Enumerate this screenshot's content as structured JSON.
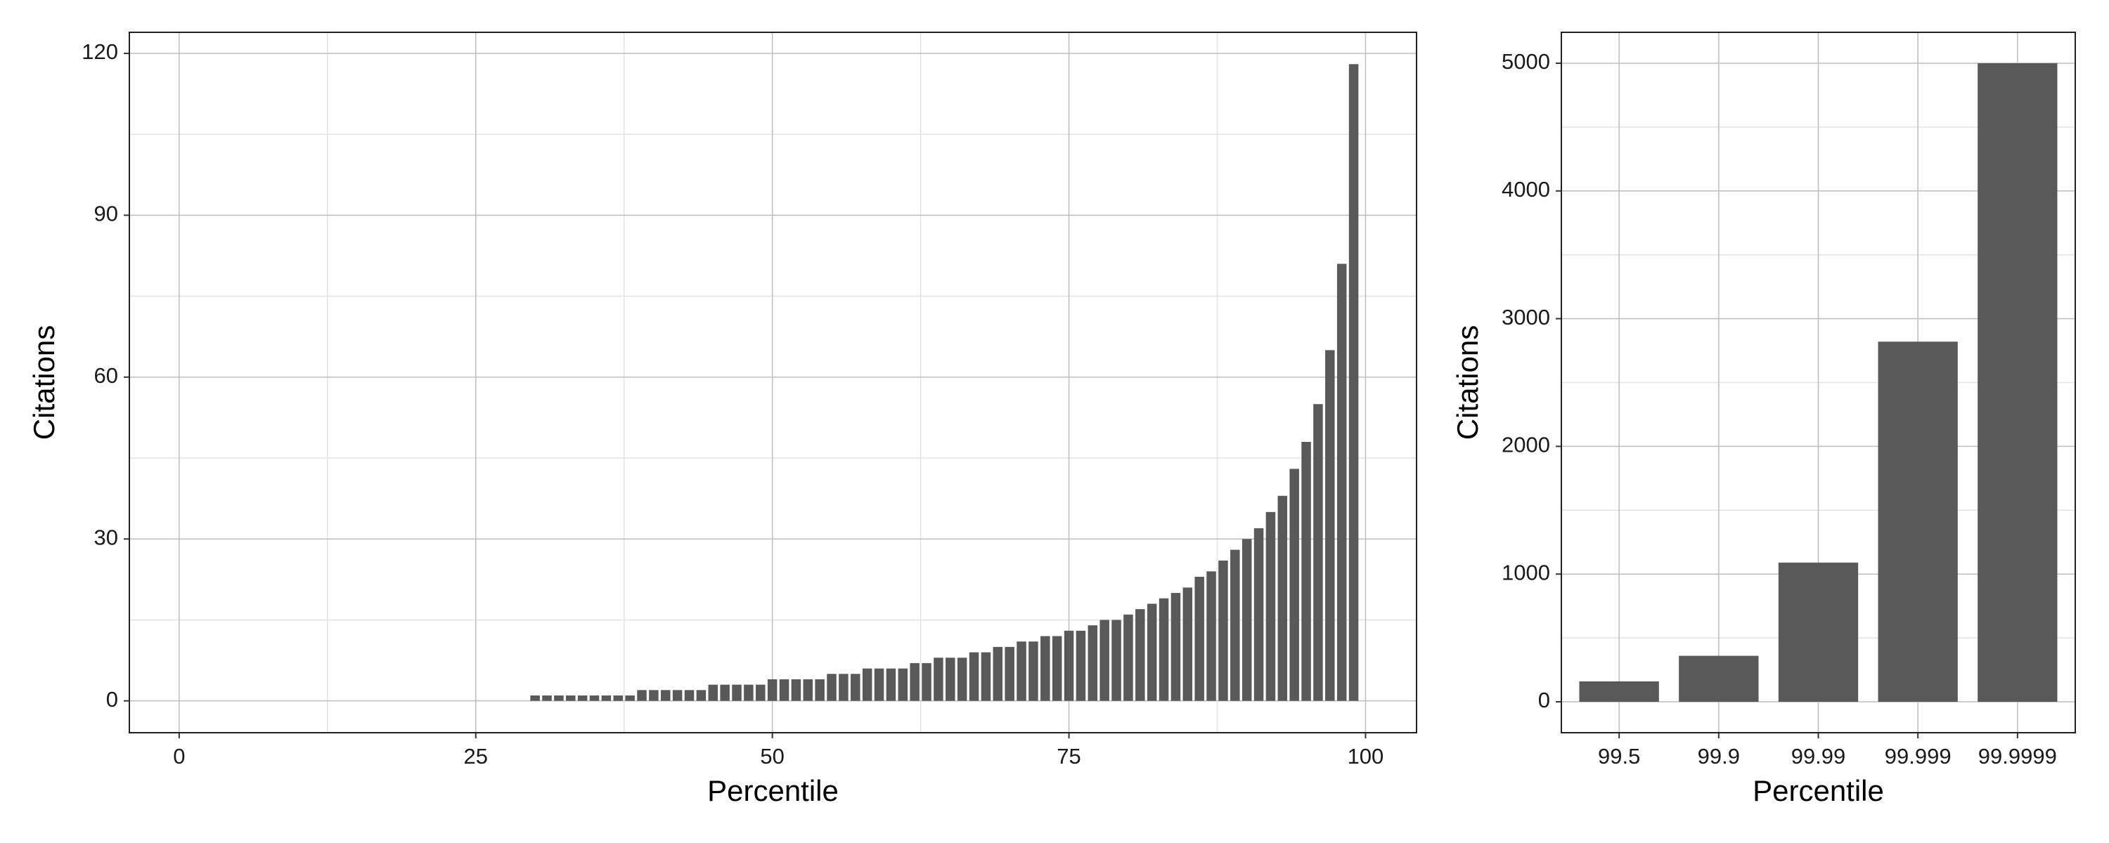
{
  "chart_data": [
    {
      "type": "bar",
      "x_label": "Percentile",
      "y_label": "Citations",
      "color": "#595959",
      "grid": true,
      "x": [
        0,
        1,
        2,
        3,
        4,
        5,
        6,
        7,
        8,
        9,
        10,
        11,
        12,
        13,
        14,
        15,
        16,
        17,
        18,
        19,
        20,
        21,
        22,
        23,
        24,
        25,
        26,
        27,
        28,
        29,
        30,
        31,
        32,
        33,
        34,
        35,
        36,
        37,
        38,
        39,
        40,
        41,
        42,
        43,
        44,
        45,
        46,
        47,
        48,
        49,
        50,
        51,
        52,
        53,
        54,
        55,
        56,
        57,
        58,
        59,
        60,
        61,
        62,
        63,
        64,
        65,
        66,
        67,
        68,
        69,
        70,
        71,
        72,
        73,
        74,
        75,
        76,
        77,
        78,
        79,
        80,
        81,
        82,
        83,
        84,
        85,
        86,
        87,
        88,
        89,
        90,
        91,
        92,
        93,
        94,
        95,
        96,
        97,
        98,
        99
      ],
      "values": [
        0,
        0,
        0,
        0,
        0,
        0,
        0,
        0,
        0,
        0,
        0,
        0,
        0,
        0,
        0,
        0,
        0,
        0,
        0,
        0,
        0,
        0,
        0,
        0,
        0,
        0,
        0,
        0,
        0,
        0,
        1,
        1,
        1,
        1,
        1,
        1,
        1,
        1,
        1,
        2,
        2,
        2,
        2,
        2,
        2,
        3,
        3,
        3,
        3,
        3,
        4,
        4,
        4,
        4,
        4,
        5,
        5,
        5,
        6,
        6,
        6,
        6,
        7,
        7,
        8,
        8,
        8,
        9,
        9,
        10,
        10,
        11,
        11,
        12,
        12,
        13,
        13,
        14,
        15,
        15,
        16,
        17,
        18,
        19,
        20,
        21,
        23,
        24,
        26,
        28,
        30,
        32,
        35,
        38,
        43,
        48,
        55,
        65,
        81,
        118
      ],
      "xlim": [
        -4.2,
        104.3
      ],
      "xticks": [
        0,
        25,
        50,
        75,
        100
      ],
      "xminorticks": [
        12.5,
        37.5,
        62.5,
        87.5
      ],
      "ylim": [
        -5.9,
        123.9
      ],
      "yticks": [
        0,
        30,
        60,
        90,
        120
      ],
      "yminorticks": [
        15,
        45,
        75,
        105
      ]
    },
    {
      "type": "bar",
      "x_label": "Percentile",
      "y_label": "Citations",
      "color": "#595959",
      "grid": true,
      "categories": [
        "99.5",
        "99.9",
        "99.99",
        "99.999",
        "99.9999"
      ],
      "values": [
        160,
        360,
        1090,
        2820,
        5000
      ],
      "ylim": [
        -242,
        5242
      ],
      "yticks": [
        0,
        1000,
        2000,
        3000,
        4000,
        5000
      ],
      "yminorticks": [
        500,
        1500,
        2500,
        3500,
        4500
      ]
    }
  ]
}
